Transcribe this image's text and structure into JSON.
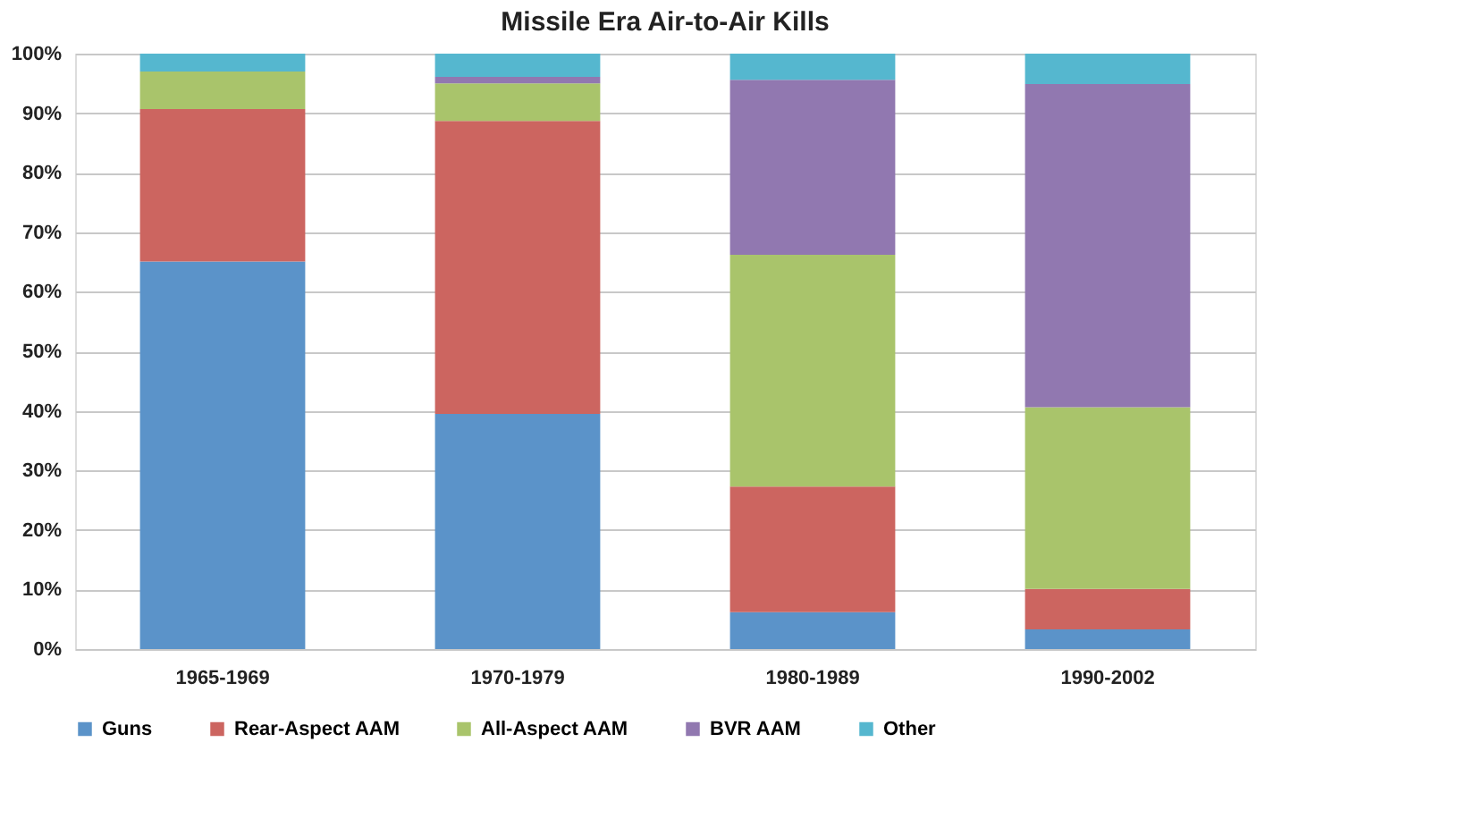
{
  "chart_data": {
    "type": "bar",
    "title": "Missile Era Air-to-Air Kills",
    "stacked": true,
    "categories": [
      "1965-1969",
      "1970-1979",
      "1980-1989",
      "1990-2002"
    ],
    "series": [
      {
        "name": "Guns",
        "color": "#5b93c9",
        "values": [
          65.1,
          39.5,
          6.2,
          3.3
        ]
      },
      {
        "name": "Rear-Aspect AAM",
        "color": "#cc6560",
        "values": [
          25.6,
          49.2,
          21.1,
          6.8
        ]
      },
      {
        "name": "All-Aspect AAM",
        "color": "#a9c46b",
        "values": [
          6.3,
          6.3,
          38.9,
          30.5
        ]
      },
      {
        "name": "BVR AAM",
        "color": "#9178b0",
        "values": [
          0,
          1.1,
          29.4,
          54.3
        ]
      },
      {
        "name": "Other",
        "color": "#55b7cf",
        "values": [
          3.0,
          3.9,
          4.4,
          5.1
        ]
      }
    ],
    "ylim": [
      0,
      100
    ],
    "yticks": [
      {
        "value": 0,
        "label": "0%"
      },
      {
        "value": 10,
        "label": "10%"
      },
      {
        "value": 20,
        "label": "20%"
      },
      {
        "value": 30,
        "label": "30%"
      },
      {
        "value": 40,
        "label": "40%"
      },
      {
        "value": 50,
        "label": "50%"
      },
      {
        "value": 60,
        "label": "60%"
      },
      {
        "value": 70,
        "label": "70%"
      },
      {
        "value": 80,
        "label": "80%"
      },
      {
        "value": 90,
        "label": "90%"
      },
      {
        "value": 100,
        "label": "100%"
      }
    ],
    "grid": "y",
    "legend": "bottom"
  }
}
